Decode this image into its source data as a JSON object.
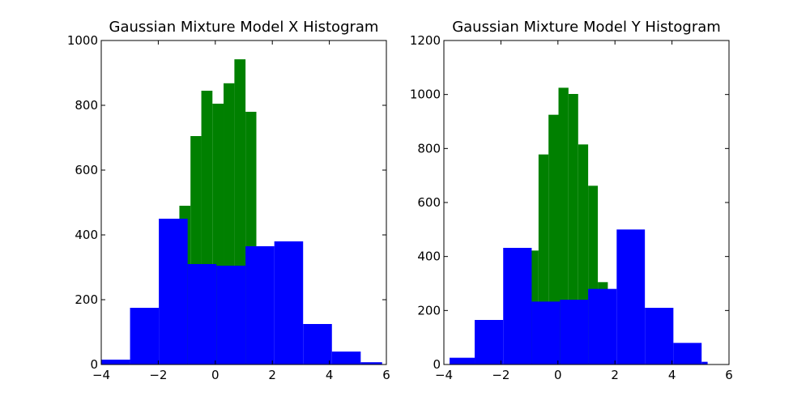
{
  "chart_data": [
    {
      "type": "bar",
      "title": "Gaussian Mixture Model X Histogram",
      "xlabel": "",
      "ylabel": "",
      "xlim": [
        -4,
        6
      ],
      "ylim": [
        0,
        1000
      ],
      "xticks": [
        "−4",
        "−2",
        "0",
        "2",
        "4",
        "6"
      ],
      "yticks": [
        "0",
        "200",
        "400",
        "600",
        "800",
        "1000"
      ],
      "grid": false,
      "legend": "none",
      "series": [
        {
          "color": "#008000",
          "bins": [
            {
              "x0": -1.26,
              "x1": -0.87,
              "value": 490
            },
            {
              "x0": -0.87,
              "x1": -0.49,
              "value": 705
            },
            {
              "x0": -0.49,
              "x1": -0.1,
              "value": 845
            },
            {
              "x0": -0.1,
              "x1": 0.29,
              "value": 805
            },
            {
              "x0": 0.29,
              "x1": 0.67,
              "value": 868
            },
            {
              "x0": 0.67,
              "x1": 1.06,
              "value": 942
            },
            {
              "x0": 1.06,
              "x1": 1.44,
              "value": 780
            }
          ]
        },
        {
          "color": "#0000ff",
          "bins": [
            {
              "x0": -4.0,
              "x1": -2.99,
              "value": 15
            },
            {
              "x0": -2.99,
              "x1": -1.98,
              "value": 175
            },
            {
              "x0": -1.98,
              "x1": -0.97,
              "value": 450
            },
            {
              "x0": -0.97,
              "x1": 0.04,
              "value": 310
            },
            {
              "x0": 0.04,
              "x1": 1.06,
              "value": 305
            },
            {
              "x0": 1.06,
              "x1": 2.07,
              "value": 365
            },
            {
              "x0": 2.07,
              "x1": 3.08,
              "value": 380
            },
            {
              "x0": 3.08,
              "x1": 4.09,
              "value": 125
            },
            {
              "x0": 4.09,
              "x1": 5.1,
              "value": 40
            },
            {
              "x0": 5.1,
              "x1": 5.85,
              "value": 7
            }
          ]
        }
      ]
    },
    {
      "type": "bar",
      "title": "Gaussian Mixture Model Y Histogram",
      "xlabel": "",
      "ylabel": "",
      "xlim": [
        -4,
        6
      ],
      "ylim": [
        0,
        1200
      ],
      "xticks": [
        "−4",
        "−2",
        "0",
        "2",
        "4",
        "6"
      ],
      "yticks": [
        "0",
        "200",
        "400",
        "600",
        "800",
        "1000",
        "1200"
      ],
      "grid": false,
      "legend": "none",
      "series": [
        {
          "color": "#008000",
          "bins": [
            {
              "x0": -1.06,
              "x1": -0.68,
              "value": 422
            },
            {
              "x0": -0.68,
              "x1": -0.33,
              "value": 778
            },
            {
              "x0": -0.33,
              "x1": 0.02,
              "value": 925
            },
            {
              "x0": 0.02,
              "x1": 0.37,
              "value": 1025
            },
            {
              "x0": 0.37,
              "x1": 0.71,
              "value": 1002
            },
            {
              "x0": 0.71,
              "x1": 1.06,
              "value": 815
            },
            {
              "x0": 1.06,
              "x1": 1.4,
              "value": 662
            },
            {
              "x0": 1.4,
              "x1": 1.75,
              "value": 305
            }
          ]
        },
        {
          "color": "#0000ff",
          "bins": [
            {
              "x0": -3.8,
              "x1": -2.92,
              "value": 25
            },
            {
              "x0": -2.92,
              "x1": -1.92,
              "value": 165
            },
            {
              "x0": -1.92,
              "x1": -0.92,
              "value": 432
            },
            {
              "x0": -0.92,
              "x1": 0.07,
              "value": 233
            },
            {
              "x0": 0.07,
              "x1": 1.06,
              "value": 240
            },
            {
              "x0": 1.06,
              "x1": 2.06,
              "value": 280
            },
            {
              "x0": 2.06,
              "x1": 3.05,
              "value": 500
            },
            {
              "x0": 3.05,
              "x1": 4.05,
              "value": 210
            },
            {
              "x0": 4.05,
              "x1": 5.04,
              "value": 80
            },
            {
              "x0": 5.04,
              "x1": 5.25,
              "value": 10
            }
          ]
        }
      ]
    }
  ]
}
